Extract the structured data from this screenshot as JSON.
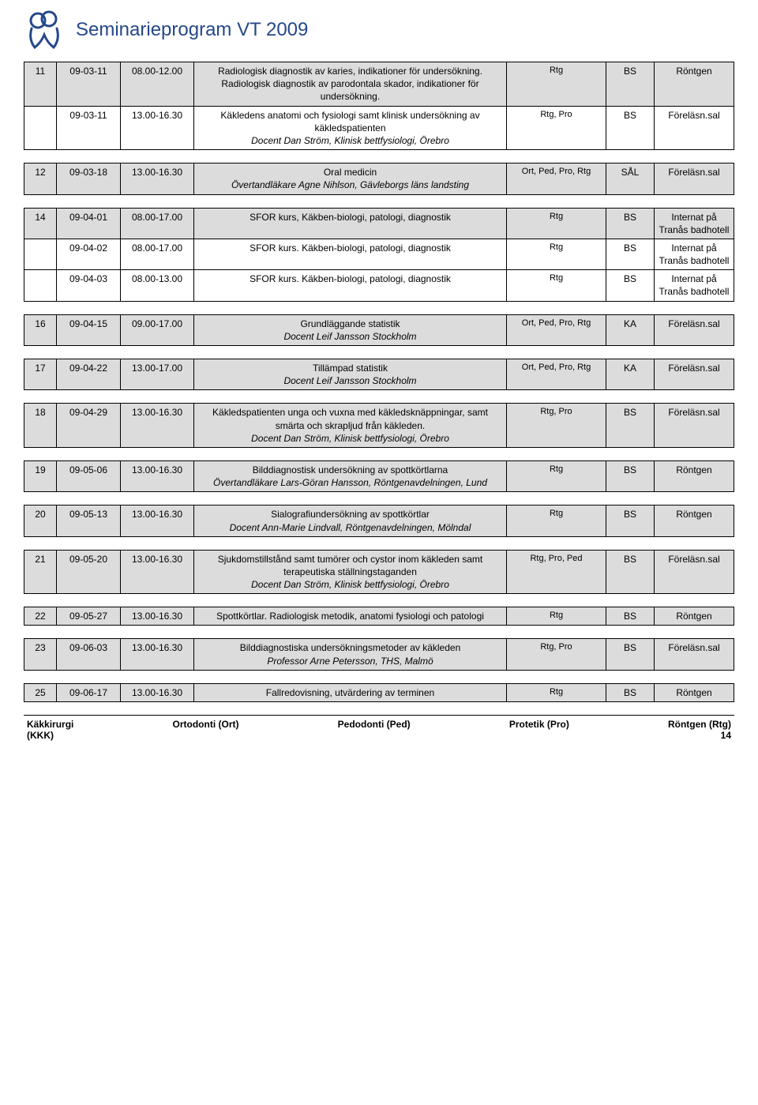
{
  "header": {
    "title": "Seminarieprogram VT 2009"
  },
  "blocks": [
    {
      "rows": [
        {
          "gray": true,
          "num": "11",
          "date": "09-03-11",
          "time": "08.00-12.00",
          "desc": "Radiologisk diagnostik av karies, indikationer för undersökning. Radiologisk diagnostik av parodontala skador, indikationer för undersökning.",
          "desc2": "",
          "who": "Rtg",
          "loc": "BS",
          "room": "Röntgen"
        },
        {
          "gray": false,
          "num": "",
          "date": "09-03-11",
          "time": "13.00-16.30",
          "desc": "Käkledens anatomi och fysiologi samt klinisk undersökning av käkledspatienten",
          "desc2": "Docent Dan Ström, Klinisk bettfysiologi, Örebro",
          "who": "Rtg, Pro",
          "loc": "BS",
          "room": "Föreläsn.sal"
        }
      ]
    },
    {
      "rows": [
        {
          "gray": true,
          "num": "12",
          "date": "09-03-18",
          "time": "13.00-16.30",
          "desc": "Oral medicin",
          "desc2": "Övertandläkare Agne Nihlson, Gävleborgs läns landsting",
          "who": "Ort, Ped, Pro, Rtg",
          "loc": "SÅL",
          "room": "Föreläsn.sal"
        }
      ]
    },
    {
      "rows": [
        {
          "gray": true,
          "num": "14",
          "date": "09-04-01",
          "time": "08.00-17.00",
          "desc": "SFOR kurs, Käkben-biologi, patologi, diagnostik",
          "desc2": "",
          "who": "Rtg",
          "loc": "BS",
          "room": "Internat på Tranås badhotell"
        },
        {
          "gray": false,
          "num": "",
          "date": "09-04-02",
          "time": "08.00-17.00",
          "desc": "SFOR kurs. Käkben-biologi, patologi, diagnostik",
          "desc2": "",
          "who": "Rtg",
          "loc": "BS",
          "room": "Internat på Tranås badhotell"
        },
        {
          "gray": false,
          "num": "",
          "date": "09-04-03",
          "time": "08.00-13.00",
          "desc": "SFOR kurs. Käkben-biologi, patologi, diagnostik",
          "desc2": "",
          "who": "Rtg",
          "loc": "BS",
          "room": "Internat på Tranås badhotell"
        }
      ]
    },
    {
      "rows": [
        {
          "gray": true,
          "num": "16",
          "date": "09-04-15",
          "time": "09.00-17.00",
          "desc": "Grundläggande statistik",
          "desc2": "Docent Leif Jansson Stockholm",
          "who": "Ort, Ped, Pro, Rtg",
          "loc": "KA",
          "room": "Föreläsn.sal"
        }
      ]
    },
    {
      "rows": [
        {
          "gray": true,
          "num": "17",
          "date": "09-04-22",
          "time": "13.00-17.00",
          "desc": "Tillämpad statistik",
          "desc2": "Docent Leif Jansson Stockholm",
          "who": "Ort, Ped, Pro, Rtg",
          "loc": "KA",
          "room": "Föreläsn.sal"
        }
      ]
    },
    {
      "rows": [
        {
          "gray": true,
          "num": "18",
          "date": "09-04-29",
          "time": "13.00-16.30",
          "desc": "Käkledspatienten unga och vuxna med käkledsknäppningar, samt smärta och skrapljud från käkleden.",
          "desc2": "Docent Dan Ström, Klinisk bettfysiologi, Örebro",
          "who": "Rtg, Pro",
          "loc": "BS",
          "room": "Föreläsn.sal"
        }
      ]
    },
    {
      "rows": [
        {
          "gray": true,
          "num": "19",
          "date": "09-05-06",
          "time": "13.00-16.30",
          "desc": "Bilddiagnostisk undersökning av spottkörtlarna",
          "desc2": "Övertandläkare Lars-Göran Hansson, Röntgenavdelningen, Lund",
          "who": "Rtg",
          "loc": "BS",
          "room": "Röntgen"
        }
      ]
    },
    {
      "rows": [
        {
          "gray": true,
          "num": "20",
          "date": "09-05-13",
          "time": "13.00-16.30",
          "desc": "Sialografiundersökning av spottkörtlar",
          "desc2": "Docent Ann-Marie Lindvall, Röntgenavdelningen, Mölndal",
          "who": "Rtg",
          "loc": "BS",
          "room": "Röntgen"
        }
      ]
    },
    {
      "rows": [
        {
          "gray": true,
          "num": "21",
          "date": "09-05-20",
          "time": "13.00-16.30",
          "desc": "Sjukdomstillstånd samt tumörer och cystor inom käkleden samt terapeutiska ställningstaganden",
          "desc2": "Docent Dan Ström, Klinisk bettfysiologi, Örebro",
          "who": "Rtg, Pro, Ped",
          "loc": "BS",
          "room": "Föreläsn.sal"
        }
      ]
    },
    {
      "rows": [
        {
          "gray": true,
          "num": "22",
          "date": "09-05-27",
          "time": "13.00-16.30",
          "desc": "Spottkörtlar. Radiologisk metodik, anatomi fysiologi och patologi",
          "desc2": "",
          "who": "Rtg",
          "loc": "BS",
          "room": "Röntgen"
        }
      ]
    },
    {
      "rows": [
        {
          "gray": true,
          "num": "23",
          "date": "09-06-03",
          "time": "13.00-16.30",
          "desc": "Bilddiagnostiska undersökningsmetoder av käkleden",
          "desc2": "Professor Arne Petersson, THS, Malmö",
          "who": "Rtg, Pro",
          "loc": "BS",
          "room": "Föreläsn.sal"
        }
      ]
    },
    {
      "rows": [
        {
          "gray": true,
          "num": "25",
          "date": "09-06-17",
          "time": "13.00-16.30",
          "desc": "Fallredovisning, utvärdering av terminen",
          "desc2": "",
          "who": "Rtg",
          "loc": "BS",
          "room": "Röntgen"
        }
      ]
    }
  ],
  "footer": {
    "line1": [
      "Käkkirurgi",
      "Ortodonti (Ort)",
      "Pedodonti (Ped)",
      "Protetik (Pro)",
      "Röntgen (Rtg)"
    ],
    "line2": "(KKK)",
    "page": "14"
  }
}
